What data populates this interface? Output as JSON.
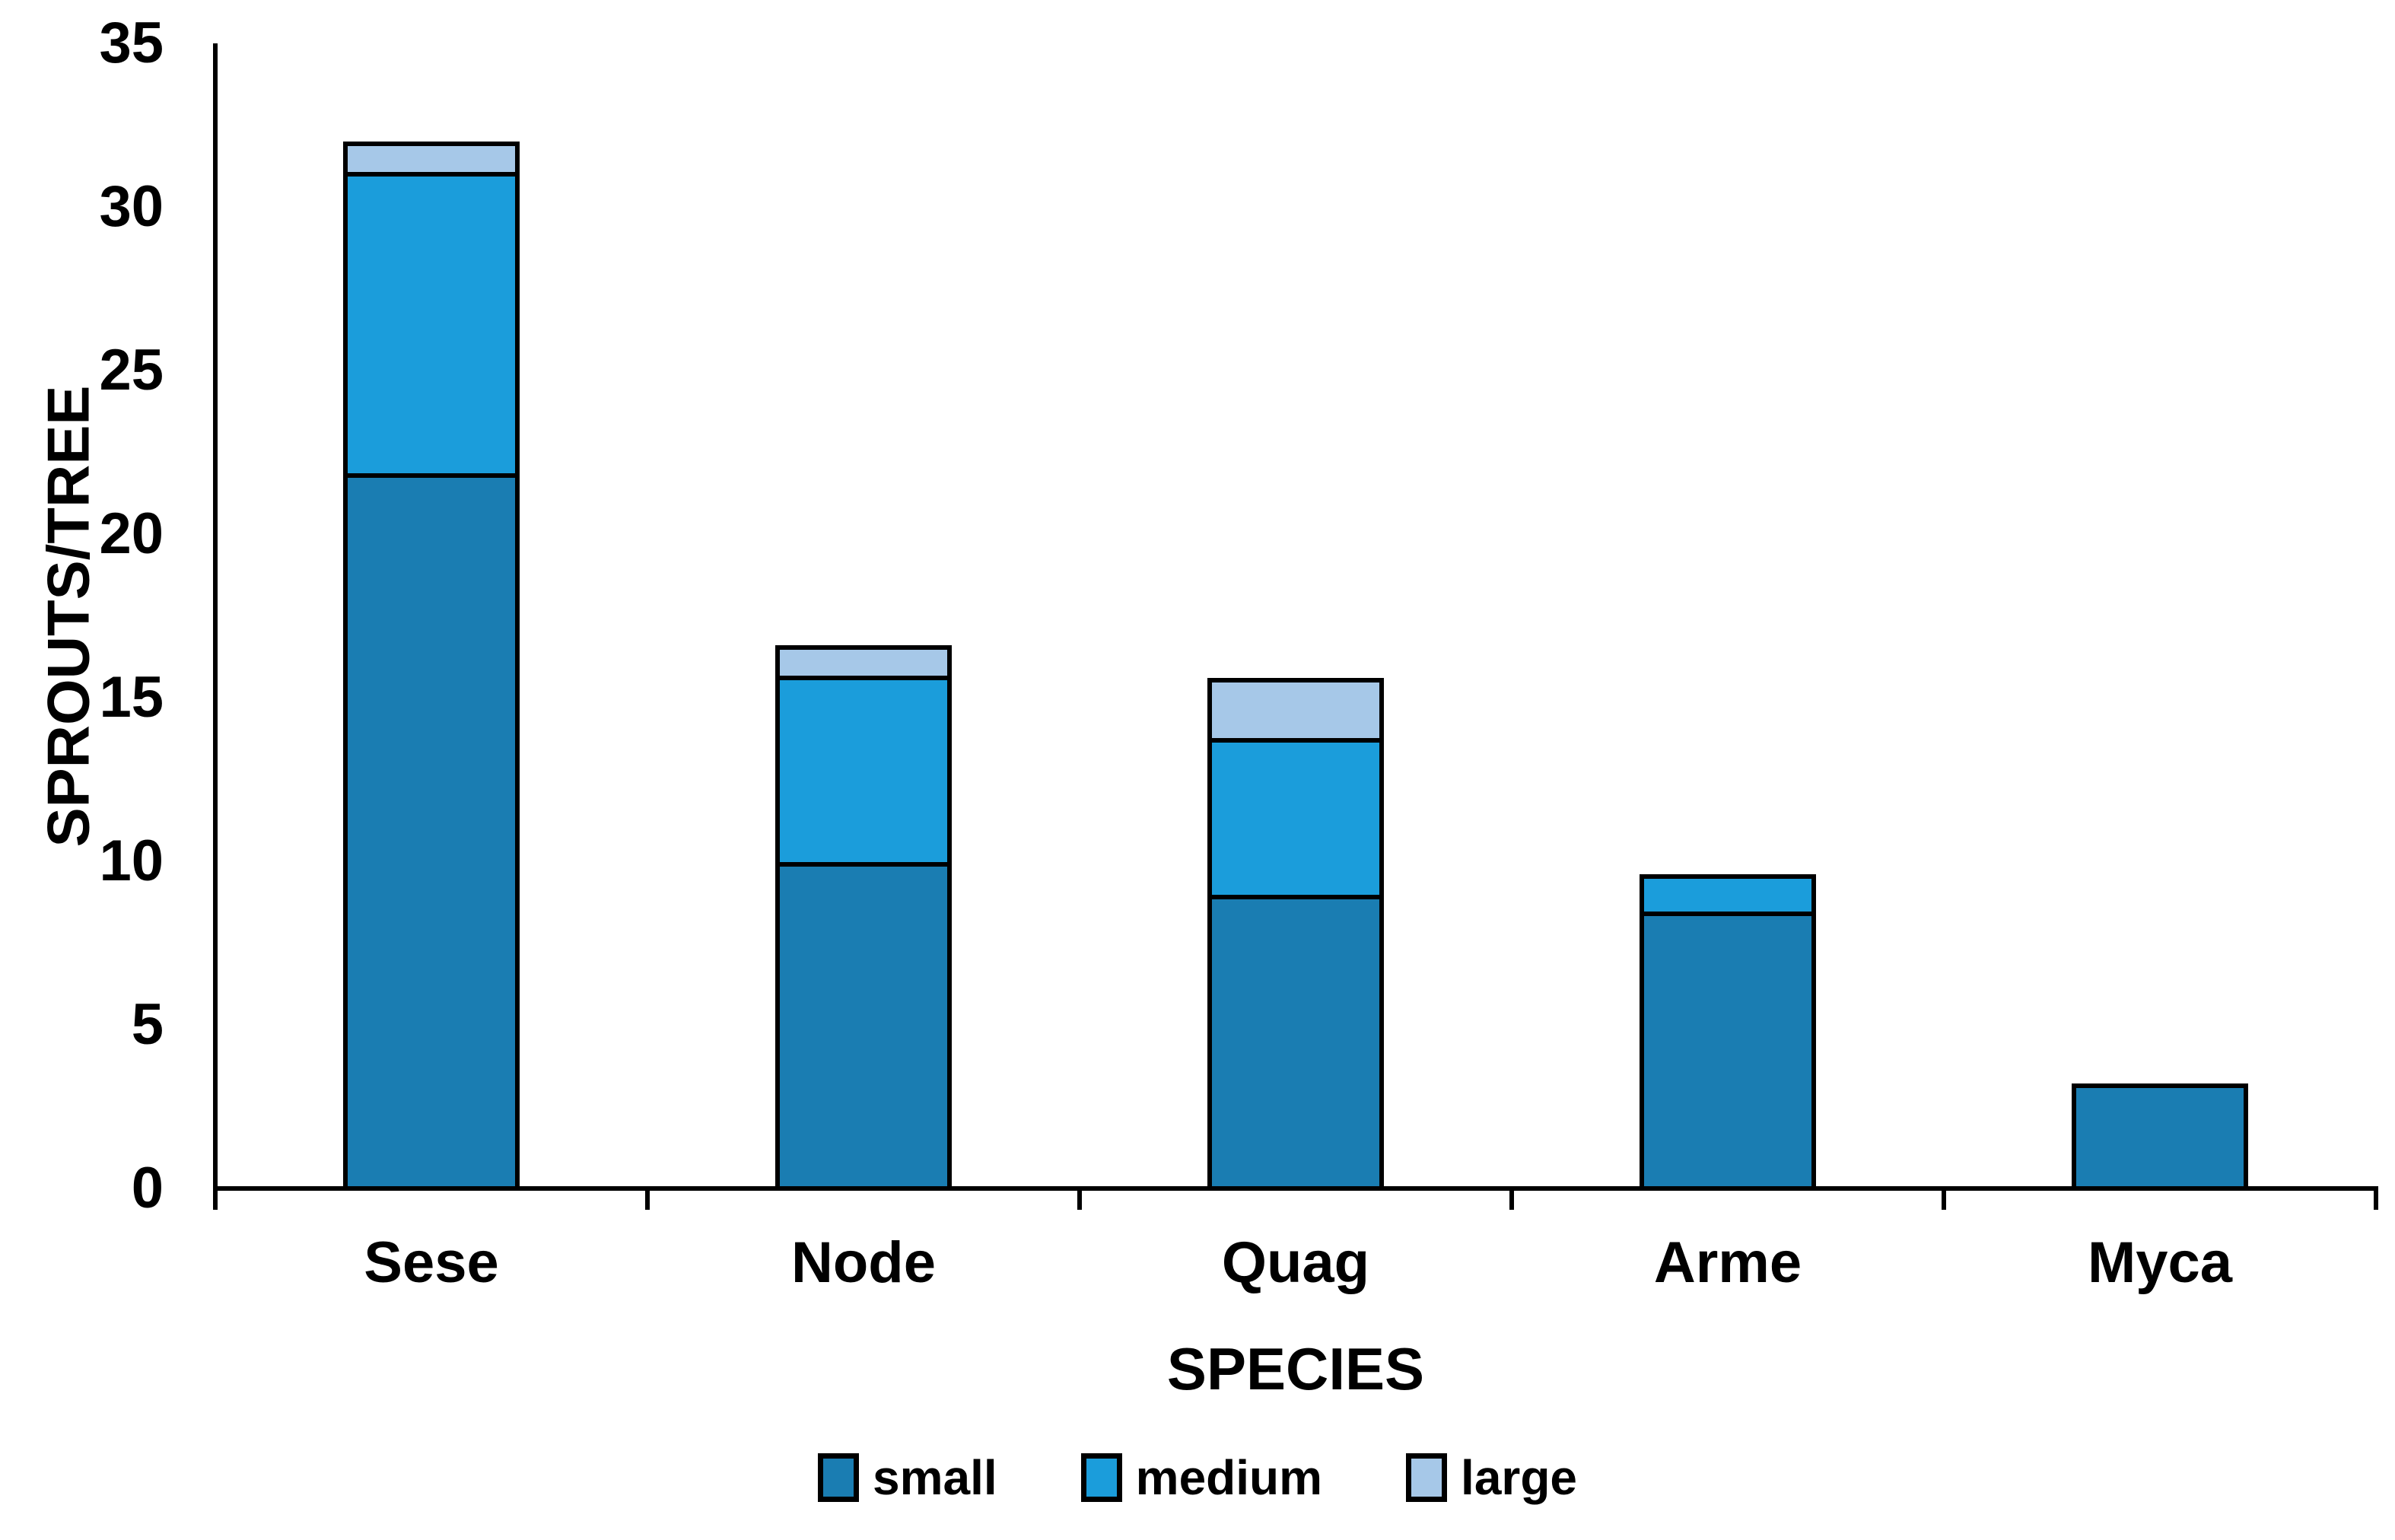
{
  "chart_data": {
    "type": "bar",
    "stacked": true,
    "title": "",
    "xlabel": "SPECIES",
    "ylabel": "SPROUTS/TREE",
    "categories": [
      "Sese",
      "Node",
      "Quag",
      "Arme",
      "Myca"
    ],
    "series": [
      {
        "name": "small",
        "color": "#1A7DB2",
        "values": [
          21.8,
          9.9,
          8.9,
          8.4,
          3.2
        ]
      },
      {
        "name": "medium",
        "color": "#1B9DDB",
        "values": [
          9.2,
          5.7,
          4.8,
          1.2,
          0
        ]
      },
      {
        "name": "large",
        "color": "#A6C8E8",
        "values": [
          1.0,
          1.0,
          1.9,
          0,
          0
        ]
      }
    ],
    "stack_totals": [
      32.0,
      16.6,
      15.6,
      9.6,
      3.2
    ],
    "ylim": [
      0,
      35
    ],
    "yticks": [
      0,
      5,
      10,
      15,
      20,
      25,
      30,
      35
    ],
    "grid": false,
    "legend_position": "bottom",
    "legend": [
      {
        "label": "small",
        "color": "#1A7DB2"
      },
      {
        "label": "medium",
        "color": "#1B9DDB"
      },
      {
        "label": "large",
        "color": "#A6C8E8"
      }
    ],
    "colors": {
      "axis": "#000000",
      "bar_border": "#000000",
      "background": "#FFFFFF"
    }
  }
}
